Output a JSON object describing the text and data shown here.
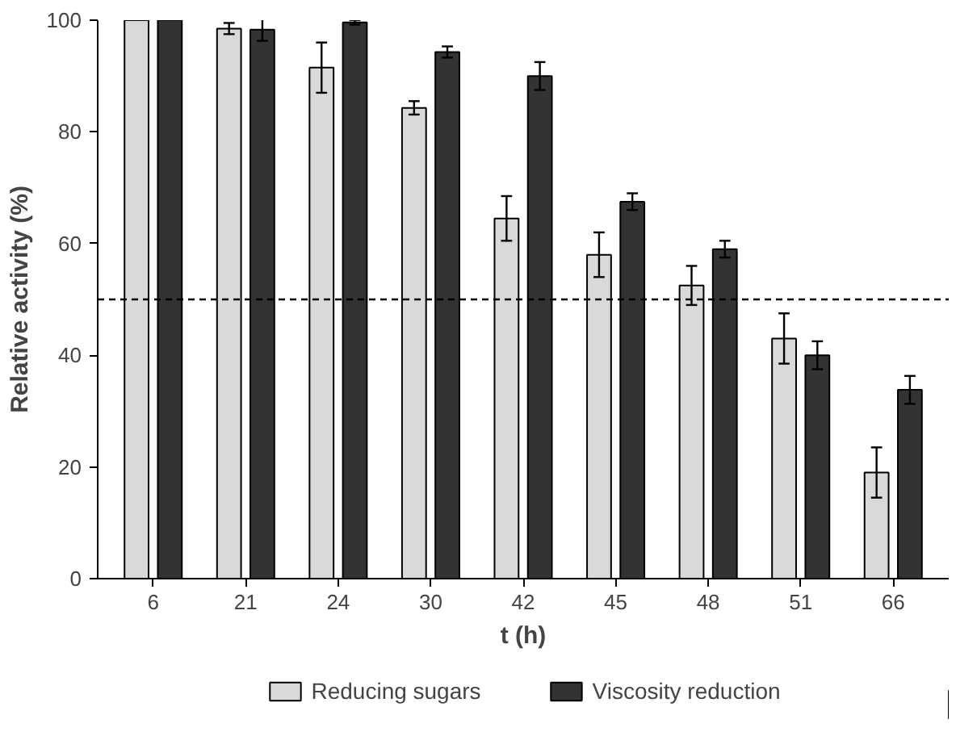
{
  "chart_data": {
    "type": "bar",
    "xlabel": "t (h)",
    "ylabel": "Relative activity (%)",
    "categories": [
      "6",
      "21",
      "24",
      "30",
      "42",
      "45",
      "48",
      "51",
      "66"
    ],
    "series": [
      {
        "name": "Reducing sugars",
        "color": "#d9d9d9",
        "values": [
          100,
          98.5,
          91.5,
          84.3,
          64.5,
          58,
          52.5,
          43,
          19
        ],
        "errors": [
          null,
          1,
          4.5,
          1.2,
          4,
          4,
          3.5,
          4.5,
          4.5
        ]
      },
      {
        "name": "Viscosity reduction",
        "color": "#333333",
        "values": [
          100,
          98.3,
          99.6,
          94.3,
          90,
          67.5,
          59,
          40,
          33.8
        ],
        "errors": [
          null,
          2,
          0.4,
          1,
          2.5,
          1.5,
          1.5,
          2.5,
          2.5
        ]
      }
    ],
    "ylim": [
      0,
      100
    ],
    "yticks": [
      0,
      20,
      40,
      60,
      80,
      100
    ],
    "ref_lines": [
      {
        "axis": "y",
        "value": 50,
        "line_style": "dashed",
        "color": "#000000"
      }
    ],
    "grid": false,
    "legend": "bottom"
  }
}
